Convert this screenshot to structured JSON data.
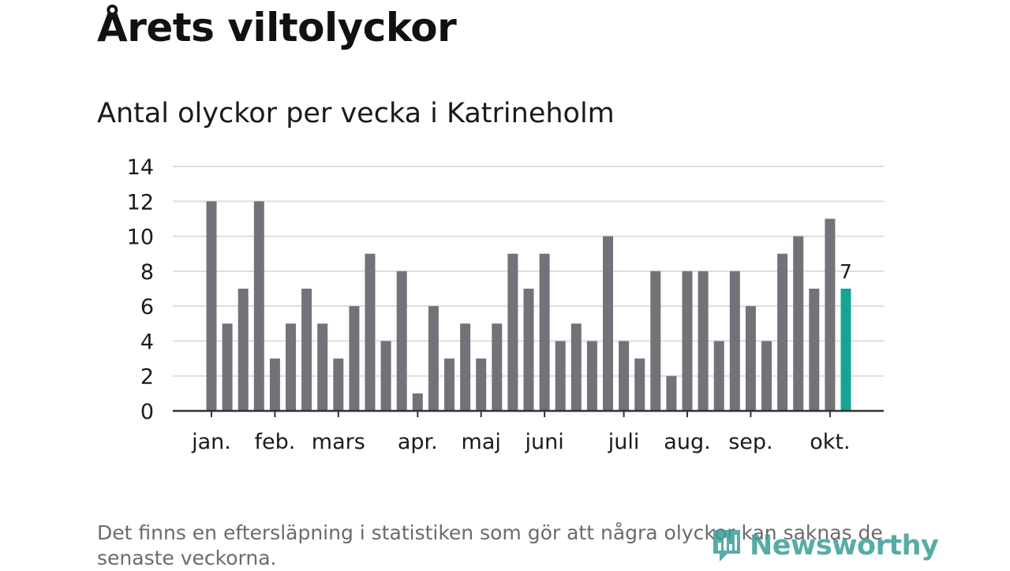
{
  "header": {
    "title": "Årets viltolyckor",
    "subtitle": "Antal olyckor per vecka i Katrineholm"
  },
  "footnote": "Det finns en eftersläpning i statistiken som gör att några olyckor kan saknas de senaste veckorna.",
  "branding": {
    "logo_text": "Newsworthy"
  },
  "colors": {
    "bar": "#737278",
    "highlight": "#16a394",
    "grid": "#dddddd",
    "axis": "#333333",
    "text": "#1a1a1a"
  },
  "chart_data": {
    "type": "bar",
    "title": "Antal olyckor per vecka i Katrineholm",
    "xlabel": "",
    "ylabel": "",
    "ylim": [
      0,
      14
    ],
    "yticks": [
      0,
      2,
      4,
      6,
      8,
      10,
      12,
      14
    ],
    "grid": true,
    "weeks": [
      1,
      2,
      3,
      4,
      5,
      6,
      7,
      8,
      9,
      10,
      11,
      12,
      13,
      14,
      15,
      16,
      17,
      18,
      19,
      20,
      21,
      22,
      23,
      24,
      25,
      26,
      27,
      28,
      29,
      30,
      31,
      32,
      33,
      34,
      35,
      36,
      37,
      38,
      39,
      40,
      41
    ],
    "values": [
      12,
      5,
      7,
      12,
      3,
      5,
      7,
      5,
      3,
      6,
      9,
      4,
      8,
      1,
      6,
      3,
      5,
      3,
      5,
      9,
      7,
      9,
      4,
      5,
      4,
      10,
      4,
      3,
      8,
      2,
      8,
      8,
      4,
      8,
      6,
      4,
      9,
      10,
      7,
      11,
      7
    ],
    "highlight_index": 40,
    "highlight_label": "7",
    "month_ticks": [
      {
        "label": "jan.",
        "week": 1
      },
      {
        "label": "feb.",
        "week": 5
      },
      {
        "label": "mars",
        "week": 9
      },
      {
        "label": "apr.",
        "week": 14
      },
      {
        "label": "maj",
        "week": 18
      },
      {
        "label": "juni",
        "week": 22
      },
      {
        "label": "juli",
        "week": 27
      },
      {
        "label": "aug.",
        "week": 31
      },
      {
        "label": "sep.",
        "week": 35
      },
      {
        "label": "okt.",
        "week": 40
      }
    ]
  }
}
